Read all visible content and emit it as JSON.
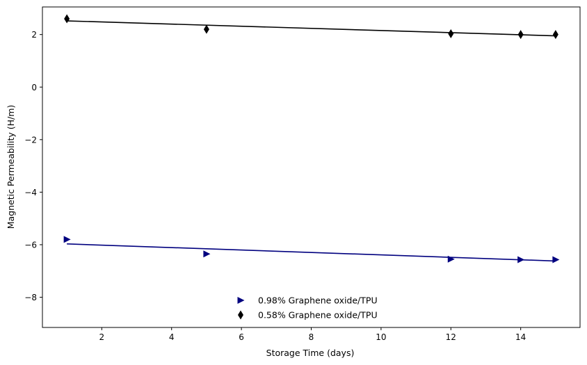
{
  "chart_data": {
    "type": "scatter",
    "title": "",
    "xlabel": "Storage Time (days)",
    "ylabel": "Magnetic Permeability (H/m)",
    "xlim": [
      0.3,
      15.7
    ],
    "ylim": [
      -9.15,
      3.05
    ],
    "xticks": [
      2,
      4,
      6,
      8,
      10,
      12,
      14
    ],
    "yticks": [
      -8,
      -6,
      -4,
      -2,
      0,
      2
    ],
    "legend_position": "lower-center",
    "grid": false,
    "series": [
      {
        "name": "0.98% Graphene oxide/TPU",
        "marker": "triangle-right",
        "color": "#00007f",
        "x": [
          1,
          5,
          12,
          14,
          15
        ],
        "y": [
          -5.8,
          -6.35,
          -6.55,
          -6.57,
          -6.57
        ],
        "fit": {
          "x": [
            1,
            15
          ],
          "y": [
            -5.97,
            -6.62
          ]
        }
      },
      {
        "name": "0.58% Graphene oxide/TPU",
        "marker": "thin-diamond",
        "color": "#000000",
        "x": [
          1,
          5,
          12,
          14,
          15
        ],
        "y": [
          2.6,
          2.2,
          2.03,
          2.0,
          2.0
        ],
        "fit": {
          "x": [
            1,
            15
          ],
          "y": [
            2.52,
            1.95
          ]
        }
      }
    ]
  }
}
